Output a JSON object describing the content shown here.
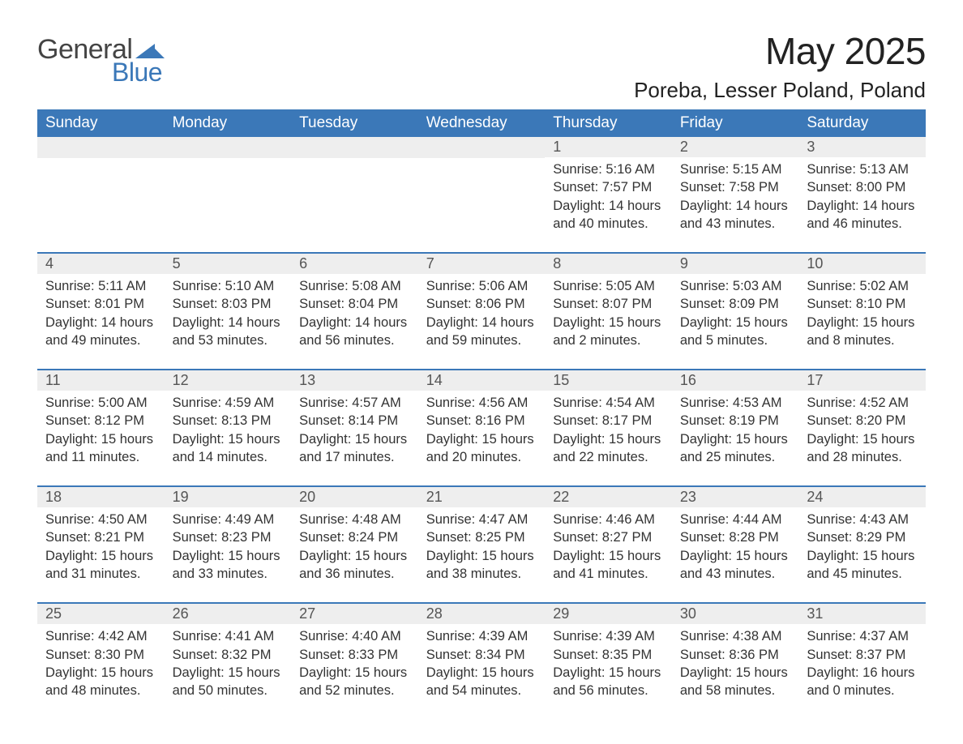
{
  "logo": {
    "text1": "General",
    "text2": "Blue",
    "arrow_color": "#3b78b8"
  },
  "title": "May 2025",
  "location": "Poreba, Lesser Poland, Poland",
  "colors": {
    "header_bg": "#3b78b8",
    "header_text": "#ffffff",
    "daynum_bg": "#eeeeee",
    "row_divider": "#3b78b8",
    "body_text": "#333333"
  },
  "day_names": [
    "Sunday",
    "Monday",
    "Tuesday",
    "Wednesday",
    "Thursday",
    "Friday",
    "Saturday"
  ],
  "weeks": [
    [
      null,
      null,
      null,
      null,
      {
        "n": "1",
        "sr": "5:16 AM",
        "ss": "7:57 PM",
        "dl": "14 hours and 40 minutes."
      },
      {
        "n": "2",
        "sr": "5:15 AM",
        "ss": "7:58 PM",
        "dl": "14 hours and 43 minutes."
      },
      {
        "n": "3",
        "sr": "5:13 AM",
        "ss": "8:00 PM",
        "dl": "14 hours and 46 minutes."
      }
    ],
    [
      {
        "n": "4",
        "sr": "5:11 AM",
        "ss": "8:01 PM",
        "dl": "14 hours and 49 minutes."
      },
      {
        "n": "5",
        "sr": "5:10 AM",
        "ss": "8:03 PM",
        "dl": "14 hours and 53 minutes."
      },
      {
        "n": "6",
        "sr": "5:08 AM",
        "ss": "8:04 PM",
        "dl": "14 hours and 56 minutes."
      },
      {
        "n": "7",
        "sr": "5:06 AM",
        "ss": "8:06 PM",
        "dl": "14 hours and 59 minutes."
      },
      {
        "n": "8",
        "sr": "5:05 AM",
        "ss": "8:07 PM",
        "dl": "15 hours and 2 minutes."
      },
      {
        "n": "9",
        "sr": "5:03 AM",
        "ss": "8:09 PM",
        "dl": "15 hours and 5 minutes."
      },
      {
        "n": "10",
        "sr": "5:02 AM",
        "ss": "8:10 PM",
        "dl": "15 hours and 8 minutes."
      }
    ],
    [
      {
        "n": "11",
        "sr": "5:00 AM",
        "ss": "8:12 PM",
        "dl": "15 hours and 11 minutes."
      },
      {
        "n": "12",
        "sr": "4:59 AM",
        "ss": "8:13 PM",
        "dl": "15 hours and 14 minutes."
      },
      {
        "n": "13",
        "sr": "4:57 AM",
        "ss": "8:14 PM",
        "dl": "15 hours and 17 minutes."
      },
      {
        "n": "14",
        "sr": "4:56 AM",
        "ss": "8:16 PM",
        "dl": "15 hours and 20 minutes."
      },
      {
        "n": "15",
        "sr": "4:54 AM",
        "ss": "8:17 PM",
        "dl": "15 hours and 22 minutes."
      },
      {
        "n": "16",
        "sr": "4:53 AM",
        "ss": "8:19 PM",
        "dl": "15 hours and 25 minutes."
      },
      {
        "n": "17",
        "sr": "4:52 AM",
        "ss": "8:20 PM",
        "dl": "15 hours and 28 minutes."
      }
    ],
    [
      {
        "n": "18",
        "sr": "4:50 AM",
        "ss": "8:21 PM",
        "dl": "15 hours and 31 minutes."
      },
      {
        "n": "19",
        "sr": "4:49 AM",
        "ss": "8:23 PM",
        "dl": "15 hours and 33 minutes."
      },
      {
        "n": "20",
        "sr": "4:48 AM",
        "ss": "8:24 PM",
        "dl": "15 hours and 36 minutes."
      },
      {
        "n": "21",
        "sr": "4:47 AM",
        "ss": "8:25 PM",
        "dl": "15 hours and 38 minutes."
      },
      {
        "n": "22",
        "sr": "4:46 AM",
        "ss": "8:27 PM",
        "dl": "15 hours and 41 minutes."
      },
      {
        "n": "23",
        "sr": "4:44 AM",
        "ss": "8:28 PM",
        "dl": "15 hours and 43 minutes."
      },
      {
        "n": "24",
        "sr": "4:43 AM",
        "ss": "8:29 PM",
        "dl": "15 hours and 45 minutes."
      }
    ],
    [
      {
        "n": "25",
        "sr": "4:42 AM",
        "ss": "8:30 PM",
        "dl": "15 hours and 48 minutes."
      },
      {
        "n": "26",
        "sr": "4:41 AM",
        "ss": "8:32 PM",
        "dl": "15 hours and 50 minutes."
      },
      {
        "n": "27",
        "sr": "4:40 AM",
        "ss": "8:33 PM",
        "dl": "15 hours and 52 minutes."
      },
      {
        "n": "28",
        "sr": "4:39 AM",
        "ss": "8:34 PM",
        "dl": "15 hours and 54 minutes."
      },
      {
        "n": "29",
        "sr": "4:39 AM",
        "ss": "8:35 PM",
        "dl": "15 hours and 56 minutes."
      },
      {
        "n": "30",
        "sr": "4:38 AM",
        "ss": "8:36 PM",
        "dl": "15 hours and 58 minutes."
      },
      {
        "n": "31",
        "sr": "4:37 AM",
        "ss": "8:37 PM",
        "dl": "16 hours and 0 minutes."
      }
    ]
  ],
  "labels": {
    "sunrise": "Sunrise: ",
    "sunset": "Sunset: ",
    "daylight": "Daylight: "
  }
}
